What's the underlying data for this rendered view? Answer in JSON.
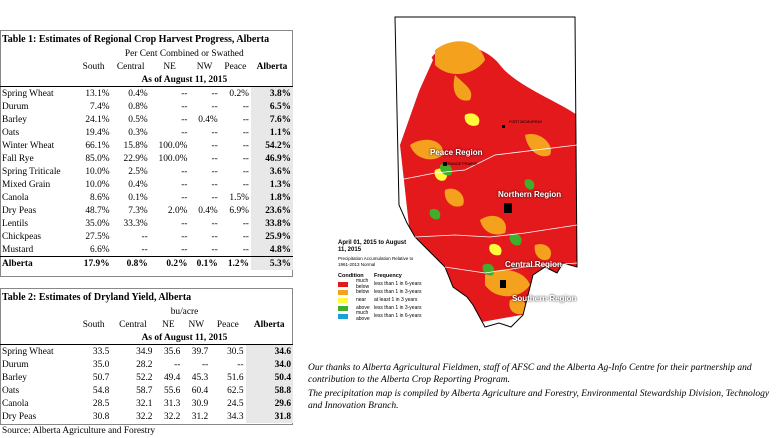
{
  "table1": {
    "title": "Table 1: Estimates of Regional Crop Harvest Progress, Alberta",
    "subtitle": "Per Cent Combined or Swathed",
    "columns": [
      "South",
      "Central",
      "NE",
      "NW",
      "Peace",
      "Alberta"
    ],
    "date": "As of August 11, 2015",
    "rows": [
      {
        "crop": "Spring Wheat",
        "v": [
          "13.1%",
          "0.4%",
          "--",
          "--",
          "0.2%",
          "3.8%"
        ]
      },
      {
        "crop": "Durum",
        "v": [
          "7.4%",
          "0.8%",
          "--",
          "--",
          "--",
          "6.5%"
        ]
      },
      {
        "crop": "Barley",
        "v": [
          "24.1%",
          "0.5%",
          "--",
          "0.4%",
          "--",
          "7.6%"
        ]
      },
      {
        "crop": "Oats",
        "v": [
          "19.4%",
          "0.3%",
          "--",
          "--",
          "--",
          "1.1%"
        ]
      },
      {
        "crop": "Winter Wheat",
        "v": [
          "66.1%",
          "15.8%",
          "100.0%",
          "--",
          "--",
          "54.2%"
        ]
      },
      {
        "crop": "Fall Rye",
        "v": [
          "85.0%",
          "22.9%",
          "100.0%",
          "--",
          "--",
          "46.9%"
        ]
      },
      {
        "crop": "Spring Triticale",
        "v": [
          "10.0%",
          "2.5%",
          "--",
          "--",
          "--",
          "3.6%"
        ]
      },
      {
        "crop": "Mixed Grain",
        "v": [
          "10.0%",
          "0.4%",
          "--",
          "--",
          "--",
          "1.3%"
        ]
      },
      {
        "crop": "Canola",
        "v": [
          "8.6%",
          "0.1%",
          "--",
          "--",
          "1.5%",
          "1.8%"
        ]
      },
      {
        "crop": "Dry Peas",
        "v": [
          "48.7%",
          "7.3%",
          "2.0%",
          "0.4%",
          "6.9%",
          "23.6%"
        ]
      },
      {
        "crop": "Lentils",
        "v": [
          "35.0%",
          "33.3%",
          "--",
          "--",
          "--",
          "33.8%"
        ]
      },
      {
        "crop": "Chickpeas",
        "v": [
          "27.5%",
          "--",
          "--",
          "--",
          "--",
          "25.9%"
        ]
      },
      {
        "crop": "Mustard",
        "v": [
          "6.6%",
          "--",
          "--",
          "--",
          "--",
          "4.8%"
        ]
      }
    ],
    "total": {
      "crop": "Alberta",
      "v": [
        "17.9%",
        "0.8%",
        "0.2%",
        "0.1%",
        "1.2%",
        "5.3%"
      ]
    }
  },
  "table2": {
    "title": "Table 2: Estimates of Dryland Yield, Alberta",
    "subtitle": "bu/acre",
    "columns": [
      "South",
      "Central",
      "NE",
      "NW",
      "Peace",
      "Alberta"
    ],
    "date": "As of August 11, 2015",
    "rows": [
      {
        "crop": "Spring Wheat",
        "v": [
          "33.5",
          "34.9",
          "35.6",
          "39.7",
          "30.5",
          "34.6"
        ]
      },
      {
        "crop": "Durum",
        "v": [
          "35.0",
          "28.2",
          "--",
          "--",
          "--",
          "34.0"
        ]
      },
      {
        "crop": "Barley",
        "v": [
          "50.7",
          "52.2",
          "49.4",
          "45.3",
          "51.6",
          "50.4"
        ]
      },
      {
        "crop": "Oats",
        "v": [
          "54.8",
          "58.7",
          "55.6",
          "60.4",
          "62.5",
          "58.8"
        ]
      },
      {
        "crop": "Canola",
        "v": [
          "28.5",
          "32.1",
          "31.3",
          "30.9",
          "24.5",
          "29.6"
        ]
      },
      {
        "crop": "Dry Peas",
        "v": [
          "30.8",
          "32.2",
          "32.2",
          "31.2",
          "34.3",
          "31.8"
        ]
      }
    ],
    "source": "Source: Alberta Agriculture and Forestry"
  },
  "map": {
    "date_title": "April 01, 2015 to August 11, 2015",
    "subtitle": "Precipitation Accumulation Relative to 1961-2013 Normal",
    "legend_headers": [
      "Condition",
      "Frequency"
    ],
    "legend": [
      {
        "condition": "much below",
        "frequency": "less than 1 in 6-years",
        "color": "#e3191c"
      },
      {
        "condition": "below",
        "frequency": "less than 1 in 3-years",
        "color": "#f4a11d"
      },
      {
        "condition": "near",
        "frequency": "at least 1 in 3 years",
        "color": "#fffb3a"
      },
      {
        "condition": "above",
        "frequency": "less than 1 in 3-years",
        "color": "#3fae2a"
      },
      {
        "condition": "much above",
        "frequency": "less than 1 in 6-years",
        "color": "#1aa0d9"
      }
    ],
    "regions": [
      "Peace Region",
      "Northern Region",
      "Central Region",
      "Southern Region"
    ],
    "towns": [
      "GRANDE PRAIRIE",
      "FORT MCMURRAY"
    ]
  },
  "credits": [
    "Our thanks to Alberta Agricultural Fieldmen, staff of AFSC and the Alberta Ag-Info Centre for their partnership and contribution to the Alberta Crop Reporting Program.",
    "The precipitation map is compiled by Alberta Agriculture and Forestry, Environmental Stewardship Division, Technology and Innovation Branch."
  ]
}
